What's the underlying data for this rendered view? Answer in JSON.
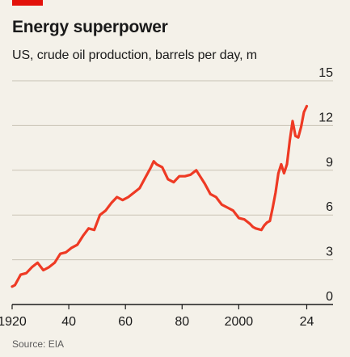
{
  "header": {
    "title": "Energy superpower",
    "subtitle": "US, crude oil production, barrels per day, m"
  },
  "footer": {
    "source": "Source: EIA"
  },
  "colors": {
    "accent": "#e3120b",
    "line": "#ee3a24",
    "background": "#f4f1e9",
    "grid": "#c9c3b5"
  },
  "chart_data": {
    "type": "line",
    "title": "Energy superpower",
    "subtitle": "US, crude oil production, barrels per day, m",
    "xlabel": "",
    "ylabel": "",
    "xlim": [
      1920,
      2027
    ],
    "ylim": [
      0,
      15
    ],
    "x_ticks": [
      1920,
      1940,
      1960,
      1980,
      2000,
      2024
    ],
    "x_tick_labels": [
      "1920",
      "40",
      "60",
      "80",
      "2000",
      "24"
    ],
    "y_ticks": [
      0,
      3,
      6,
      9,
      12,
      15
    ],
    "y_tick_labels": [
      "0",
      "3",
      "6",
      "9",
      "12",
      "15"
    ],
    "grid": "horizontal",
    "legend": "none",
    "series": [
      {
        "name": "",
        "x": [
          1920,
          1921,
          1923,
          1925,
          1927,
          1929,
          1931,
          1933,
          1935,
          1937,
          1939,
          1941,
          1943,
          1945,
          1947,
          1949,
          1951,
          1953,
          1955,
          1957,
          1959,
          1961,
          1963,
          1965,
          1967,
          1969,
          1970,
          1971,
          1973,
          1975,
          1977,
          1979,
          1981,
          1983,
          1985,
          1986,
          1988,
          1990,
          1992,
          1994,
          1996,
          1998,
          2000,
          2002,
          2004,
          2005,
          2006,
          2008,
          2009,
          2010,
          2011,
          2012,
          2013,
          2014,
          2015,
          2016,
          2017,
          2018,
          2019,
          2020,
          2021,
          2022,
          2023,
          2024
        ],
        "y": [
          1.2,
          1.3,
          2.0,
          2.1,
          2.5,
          2.8,
          2.3,
          2.5,
          2.8,
          3.4,
          3.5,
          3.8,
          4.0,
          4.6,
          5.1,
          5.0,
          6.0,
          6.3,
          6.8,
          7.2,
          7.0,
          7.2,
          7.5,
          7.8,
          8.5,
          9.2,
          9.6,
          9.4,
          9.2,
          8.4,
          8.2,
          8.6,
          8.6,
          8.7,
          9.0,
          8.7,
          8.1,
          7.4,
          7.2,
          6.7,
          6.5,
          6.3,
          5.8,
          5.7,
          5.4,
          5.2,
          5.1,
          5.0,
          5.3,
          5.5,
          5.6,
          6.5,
          7.5,
          8.8,
          9.4,
          8.8,
          9.4,
          11.0,
          12.3,
          11.3,
          11.2,
          11.9,
          12.9,
          13.3
        ]
      }
    ]
  }
}
